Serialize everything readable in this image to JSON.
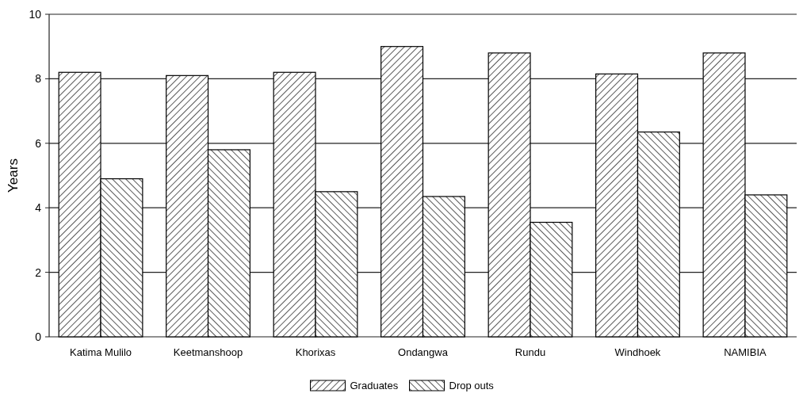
{
  "chart_data": {
    "type": "bar",
    "ylabel": "Years",
    "categories": [
      "Katima Mulilo",
      "Keetmanshoop",
      "Khorixas",
      "Ondangwa",
      "Rundu",
      "Windhoek",
      "NAMIBIA"
    ],
    "series": [
      {
        "name": "Graduates",
        "color": "#000000",
        "values": [
          8.2,
          8.1,
          8.2,
          9.0,
          8.8,
          8.15,
          8.8
        ]
      },
      {
        "name": "Drop outs",
        "color": "#000000",
        "values": [
          4.9,
          5.8,
          4.5,
          4.35,
          3.55,
          6.35,
          4.4
        ]
      }
    ],
    "ylim": [
      0,
      10
    ],
    "yticks": [
      0,
      2,
      4,
      6,
      8,
      10
    ],
    "grid": "y",
    "legend": "bottom"
  }
}
